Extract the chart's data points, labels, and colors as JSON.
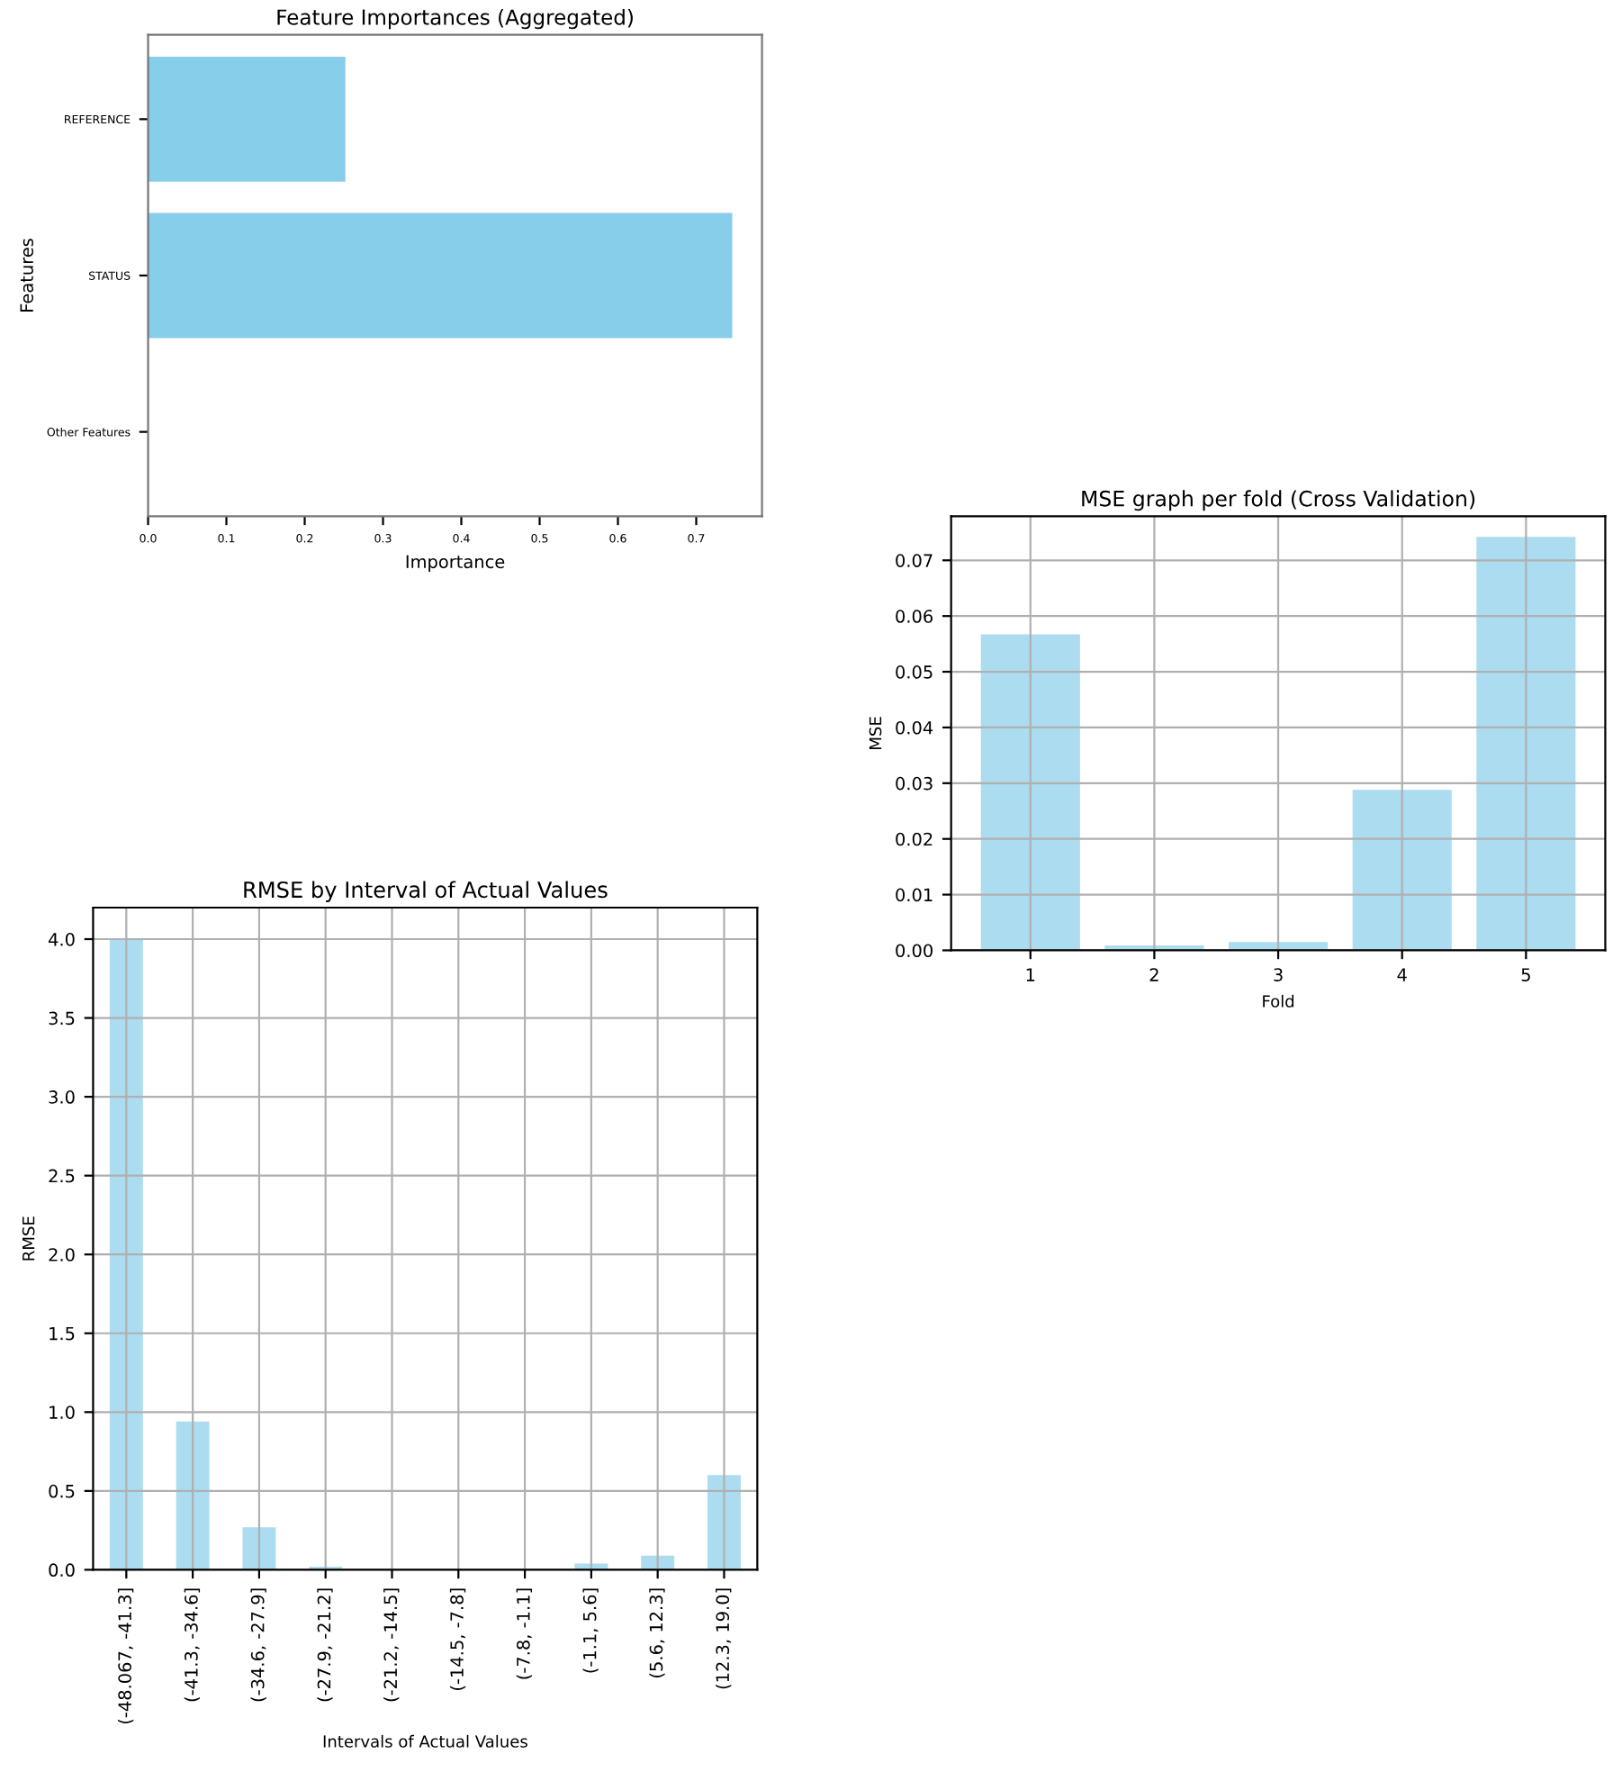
{
  "chart_data": [
    {
      "type": "bar",
      "orientation": "horizontal",
      "title": "Feature Importances (Aggregated)",
      "xlabel": "Importance",
      "ylabel": "Features",
      "categories": [
        "REFERENCE",
        "STATUS",
        "Other Features"
      ],
      "values": [
        0.252,
        0.746,
        null
      ],
      "color": "#87ceeb",
      "xlim": [
        0,
        0.784
      ],
      "xticks": [
        {
          "value": 0,
          "label": "0.0"
        },
        0.1,
        0.2,
        0.3,
        0.4,
        0.5,
        0.6,
        0.7
      ]
    },
    {
      "type": "bar",
      "title": "MSE graph per fold (Cross Validation)",
      "xlabel": "Fold",
      "ylabel": "MSE",
      "categories": [
        "1",
        "2",
        "3",
        "4",
        "5"
      ],
      "values": [
        0.0567,
        0.0009,
        0.0015,
        0.0288,
        0.0742
      ],
      "color": "#abdcf0",
      "ylim": [
        0,
        0.0779
      ],
      "yticks": [
        {
          "value": 0,
          "label": "0.00"
        },
        0.01,
        0.02,
        0.03,
        0.04,
        0.05,
        0.06,
        0.07
      ],
      "grid": true
    },
    {
      "type": "bar",
      "title": "RMSE by Interval of Actual Values",
      "xlabel": "Intervals of Actual Values",
      "ylabel": "RMSE",
      "categories": [
        "(-48.067, -41.3]",
        "(-41.3, -34.6]",
        "(-34.6, -27.9]",
        "(-27.9, -21.2]",
        "(-21.2, -14.5]",
        "(-14.5, -7.8]",
        "(-7.8, -1.1]",
        "(-1.1, 5.6]",
        "(5.6, 12.3]",
        "(12.3, 19.0]"
      ],
      "values": [
        4.0,
        0.94,
        0.27,
        0.02,
        null,
        null,
        null,
        0.04,
        0.09,
        0.6
      ],
      "color": "#abdcf0",
      "ylim": [
        0,
        4.2
      ],
      "yticks": [
        {
          "value": 0,
          "label": "0.0"
        },
        0.5,
        {
          "value": 1,
          "label": "1.0"
        },
        1.5,
        {
          "value": 2,
          "label": "2.0"
        },
        2.5,
        {
          "value": 3,
          "label": "3.0"
        },
        3.5,
        {
          "value": 4,
          "label": "4.0"
        }
      ],
      "grid": true
    }
  ]
}
